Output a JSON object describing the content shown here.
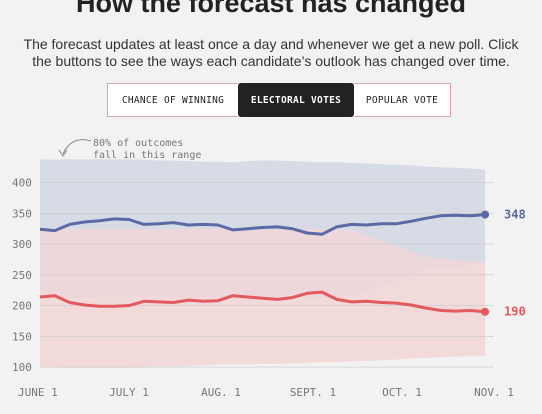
{
  "title": "How the forecast has changed",
  "subtitle_line1": "The forecast updates at least once a day and whenever we get a new poll. Click",
  "subtitle_line2": "the buttons to see the ways each candidate’s outlook has changed over time.",
  "tabs": [
    {
      "label": "CHANCE OF WINNING",
      "active": false
    },
    {
      "label": "ELECTORAL VOTES",
      "active": true
    },
    {
      "label": "POPULAR VOTE",
      "active": false
    }
  ],
  "annotation_line1": "80% of outcomes",
  "annotation_line2": "fall in this range",
  "chart_data": {
    "type": "area",
    "xlabel": "",
    "ylabel": "",
    "ylim": [
      92,
      440
    ],
    "yticks": [
      100,
      150,
      200,
      250,
      300,
      350,
      400
    ],
    "xlim": [
      0,
      153
    ],
    "xticks": [
      {
        "label": "JUNE 1",
        "x": 0
      },
      {
        "label": "JULY 1",
        "x": 30
      },
      {
        "label": "AUG. 1",
        "x": 61
      },
      {
        "label": "SEPT. 1",
        "x": 92
      },
      {
        "label": "OCT. 1",
        "x": 122
      },
      {
        "label": "NOV. 1",
        "x": 153
      }
    ],
    "x": [
      0,
      5,
      10,
      15,
      20,
      25,
      30,
      35,
      40,
      45,
      50,
      55,
      60,
      65,
      70,
      75,
      80,
      85,
      90,
      95,
      100,
      105,
      110,
      115,
      120,
      125,
      130,
      135,
      140,
      145,
      150
    ],
    "series": [
      {
        "color": "#5b6aa6",
        "band_color": "#d7dbe6",
        "end_label": "348",
        "values": [
          324,
          322,
          332,
          336,
          338,
          341,
          340,
          332,
          333,
          335,
          331,
          332,
          331,
          323,
          325,
          327,
          328,
          325,
          318,
          316,
          328,
          332,
          331,
          333,
          333,
          337,
          342,
          346,
          347,
          346,
          348
        ],
        "upper": [
          438,
          437,
          438,
          438,
          438,
          438,
          438,
          437,
          436,
          436,
          435,
          434,
          434,
          433,
          435,
          436,
          436,
          435,
          434,
          433,
          433,
          432,
          431,
          430,
          429,
          428,
          426,
          425,
          424,
          423,
          421
        ],
        "lower": [
          212,
          212,
          213,
          213,
          214,
          214,
          214,
          213,
          214,
          214,
          213,
          214,
          213,
          212,
          212,
          213,
          213,
          213,
          212,
          211,
          211,
          216,
          222,
          232,
          240,
          249,
          258,
          262,
          264,
          266,
          270
        ]
      },
      {
        "color": "#e2595e",
        "band_color": "#f2d6d7",
        "end_label": "190",
        "values": [
          214,
          216,
          205,
          201,
          199,
          199,
          200,
          207,
          206,
          205,
          209,
          207,
          208,
          216,
          214,
          212,
          210,
          213,
          220,
          222,
          210,
          206,
          207,
          205,
          204,
          201,
          196,
          192,
          191,
          192,
          190
        ],
        "upper": [
          324,
          325,
          325,
          325,
          324,
          324,
          324,
          325,
          323,
          324,
          325,
          325,
          324,
          326,
          325,
          325,
          324,
          324,
          325,
          324,
          325,
          322,
          314,
          305,
          297,
          287,
          279,
          276,
          274,
          272,
          270
        ],
        "lower": [
          100,
          100,
          99,
          99,
          99,
          99,
          99,
          100,
          101,
          101,
          102,
          103,
          104,
          104,
          104,
          105,
          105,
          106,
          107,
          108,
          108,
          109,
          110,
          111,
          112,
          114,
          115,
          116,
          117,
          118,
          119
        ]
      }
    ]
  }
}
